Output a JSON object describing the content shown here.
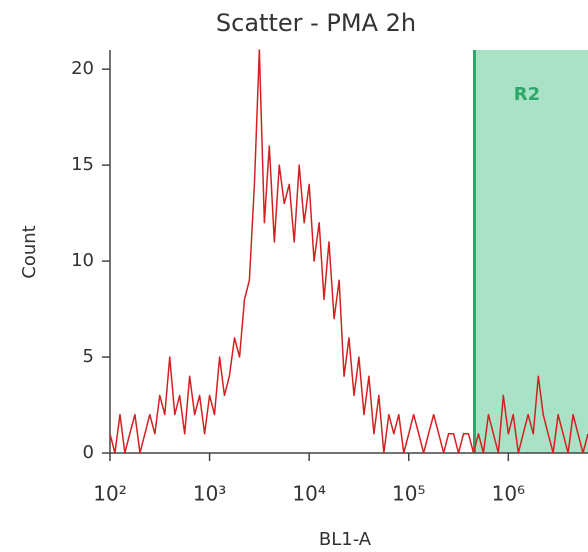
{
  "chart_data": {
    "type": "line",
    "title": "Scatter - PMA 2h",
    "xlabel": "BL1-A",
    "ylabel": "Count",
    "xscale": "log",
    "color": "#d42020",
    "x": [
      100,
      112,
      126,
      141,
      158,
      178,
      200,
      224,
      251,
      282,
      316,
      355,
      398,
      447,
      501,
      562,
      631,
      708,
      794,
      891,
      1000,
      1120,
      1260,
      1410,
      1580,
      1780,
      2000,
      2240,
      2510,
      2820,
      3160,
      3550,
      3980,
      4470,
      5010,
      5620,
      6310,
      7080,
      7940,
      8910,
      10000,
      11200,
      12600,
      14100,
      15800,
      17800,
      20000,
      22400,
      25100,
      28200,
      31600,
      35500,
      39800,
      44700,
      50100,
      56200,
      63100,
      70800,
      79400,
      89100,
      100000,
      112000,
      126000,
      141000,
      158000,
      178000,
      200000,
      224000,
      251000,
      282000,
      316000,
      355000,
      398000,
      447000,
      501000,
      562000,
      631000,
      708000,
      794000,
      891000,
      1000000,
      1120000,
      1260000,
      1410000,
      1580000,
      1780000,
      2000000,
      2240000,
      2510000,
      2820000,
      3160000,
      3550000,
      3980000,
      4470000,
      5010000,
      5620000,
      6310000
    ],
    "values": [
      1,
      0,
      2,
      0,
      1,
      2,
      0,
      1,
      2,
      1,
      3,
      2,
      5,
      2,
      3,
      1,
      4,
      2,
      3,
      1,
      3,
      2,
      5,
      3,
      4,
      6,
      5,
      8,
      9,
      14,
      21,
      12,
      16,
      11,
      15,
      13,
      14,
      11,
      15,
      12,
      14,
      10,
      12,
      8,
      11,
      7,
      9,
      4,
      6,
      3,
      5,
      2,
      4,
      1,
      3,
      0,
      2,
      1,
      2,
      0,
      1,
      2,
      1,
      0,
      1,
      2,
      1,
      0,
      1,
      1,
      0,
      1,
      1,
      0,
      1,
      0,
      2,
      1,
      0,
      3,
      1,
      2,
      0,
      1,
      2,
      1,
      4,
      2,
      1,
      0,
      2,
      1,
      0,
      2,
      1,
      0,
      1
    ],
    "xlim": [
      100,
      6310000
    ],
    "xticks": [
      {
        "value": 100,
        "label": "10²"
      },
      {
        "value": 1000,
        "label": "10³"
      },
      {
        "value": 10000,
        "label": "10⁴"
      },
      {
        "value": 100000,
        "label": "10⁵"
      },
      {
        "value": 1000000,
        "label": "10⁶"
      }
    ],
    "ylim": [
      0,
      21
    ],
    "yticks": [
      0,
      5,
      10,
      15,
      20
    ],
    "region": {
      "label": "R2",
      "from": 457000,
      "color": "#a9e2c6",
      "edge_color": "#2ea86a"
    }
  }
}
